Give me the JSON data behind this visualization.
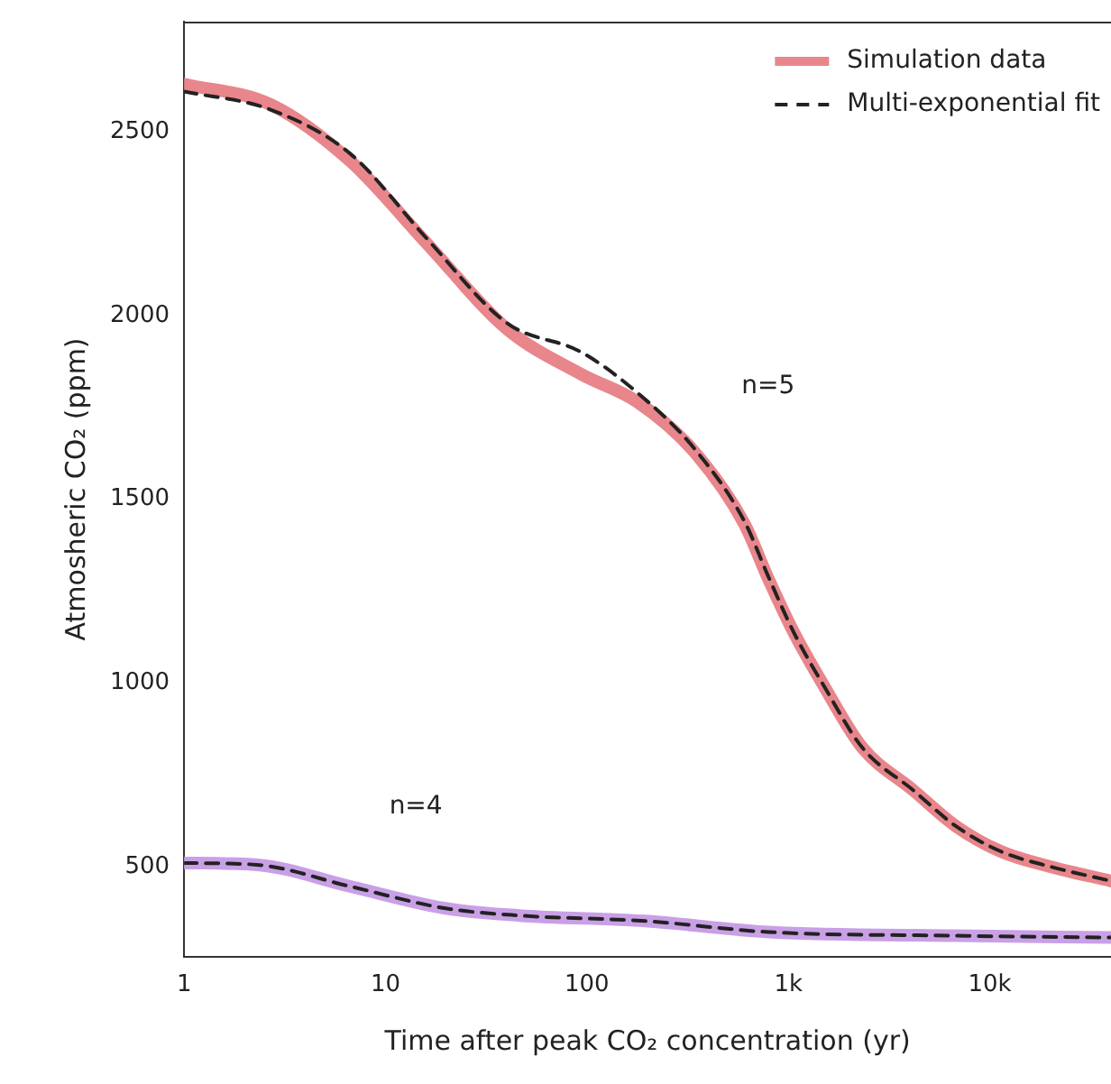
{
  "chart_data": {
    "type": "line",
    "xlabel": "Time after peak CO₂ concentration (yr)",
    "ylabel": "Atmosheric CO₂ (ppm)",
    "log": "x",
    "xlim": [
      1,
      40000
    ],
    "xticks": [
      1,
      10,
      100,
      {
        "value": 1000,
        "label": "1k"
      },
      {
        "value": 10000,
        "label": "10k"
      }
    ],
    "ylim": [
      255,
      2800
    ],
    "yticks": [
      500,
      1000,
      1500,
      2000,
      2500
    ],
    "grid": false,
    "legend": "top right",
    "marker": "none",
    "series": [
      {
        "name": "Simulation data",
        "color": "#e8868c",
        "line_style": "solid",
        "x": [
          1,
          2.7,
          6.7,
          16,
          40,
          94,
          178,
          339,
          605,
          795,
          1070,
          1520,
          2330,
          4170,
          6800,
          11400,
          20000,
          40000
        ],
        "values": [
          2630,
          2574,
          2420,
          2197,
          1964,
          1840,
          1765,
          1631,
          1433,
          1284,
          1135,
          987,
          824,
          708,
          610,
          541,
          500,
          461
        ]
      },
      {
        "color": "#c9a0e6",
        "line_style": "solid",
        "x": [
          1,
          2.3,
          6.7,
          19.6,
          46,
          195,
          800,
          6800,
          40000
        ],
        "values": [
          510,
          505,
          446,
          387,
          367,
          352,
          322,
          312,
          307
        ]
      },
      {
        "name": "Multi-exponential fit",
        "color": "#222222",
        "line_style": "dashed",
        "x": [
          1,
          2.7,
          6.7,
          16,
          40,
          94,
          178,
          339,
          605,
          795,
          1070,
          1520,
          2330,
          4170,
          6800,
          11400,
          20000,
          40000
        ],
        "values": [
          2610,
          2560,
          2440,
          2210,
          1980,
          1900,
          1790,
          1640,
          1440,
          1290,
          1135,
          987,
          824,
          708,
          610,
          541,
          500,
          461
        ]
      },
      {
        "color": "#222222",
        "line_style": "dashed",
        "x": [
          1,
          2.3,
          6.7,
          19.6,
          46,
          195,
          800,
          6800,
          40000
        ],
        "values": [
          510,
          505,
          446,
          387,
          367,
          352,
          322,
          312,
          307
        ]
      }
    ],
    "annotations": [
      "n=5",
      "n=4"
    ]
  }
}
